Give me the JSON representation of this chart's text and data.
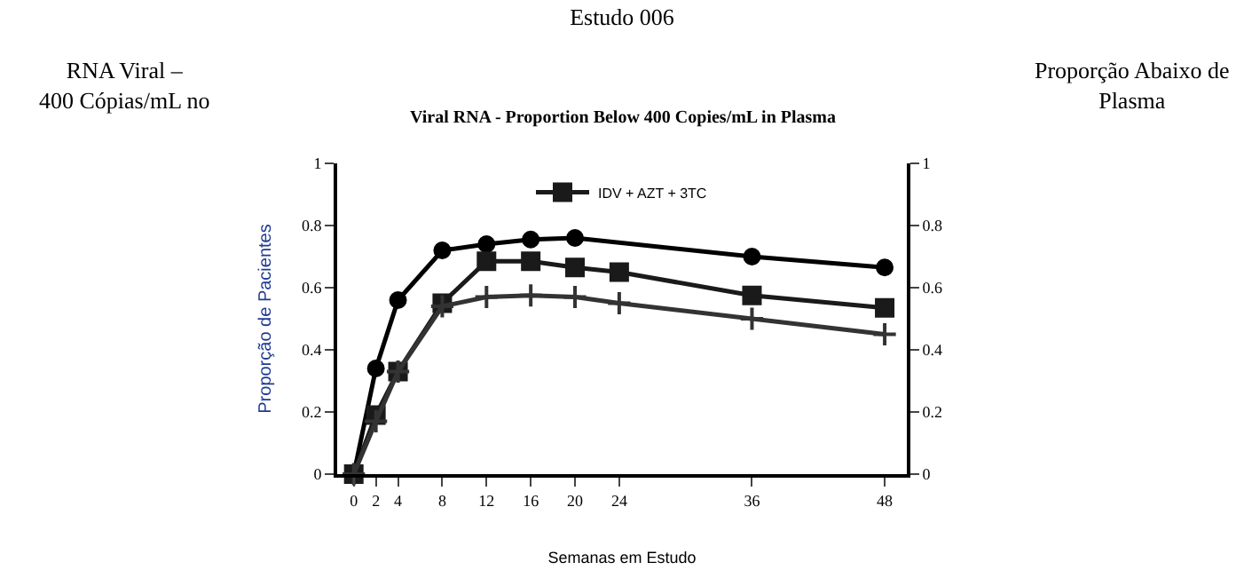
{
  "chart_data": {
    "type": "line",
    "title": "Estudo 006",
    "subtitle": "Viral RNA - Proportion Below 400 Copies/mL in Plasma",
    "xlabel": "Semanas em Estudo",
    "ylabel": "Proporção de Pacientes",
    "annotations": [
      "RNA Viral –\n400 Cópias/mL no",
      "Proporção Abaixo de\nPlasma"
    ],
    "x": [
      0,
      2,
      4,
      8,
      12,
      16,
      20,
      24,
      36,
      48
    ],
    "series": [
      {
        "color": "#000000",
        "marker": "circle",
        "values": [
          0,
          0.34,
          0.56,
          0.72,
          0.74,
          0.755,
          0.76,
          null,
          0.7,
          0.665
        ]
      },
      {
        "name": "IDV + AZT + 3TC",
        "color": "#1a1a1a",
        "marker": "square",
        "values": [
          0,
          0.19,
          0.33,
          0.55,
          0.685,
          0.685,
          0.665,
          0.65,
          0.575,
          0.535
        ]
      },
      {
        "color": "#333333",
        "marker": "cross",
        "values": [
          0,
          0.17,
          0.33,
          0.54,
          0.57,
          0.575,
          0.57,
          0.55,
          0.5,
          0.45
        ]
      }
    ],
    "xlim": [
      -1.5,
      50
    ],
    "xticks": [
      0,
      2,
      4,
      8,
      12,
      16,
      20,
      24,
      36,
      48
    ],
    "ylim": [
      0,
      1
    ],
    "yticks": [
      0,
      0.2,
      0.4,
      0.6,
      0.8,
      1
    ],
    "y2lim": [
      0,
      1
    ],
    "y2ticks": [
      0,
      0.2,
      0.4,
      0.6,
      0.8,
      1
    ],
    "legend": "top"
  }
}
